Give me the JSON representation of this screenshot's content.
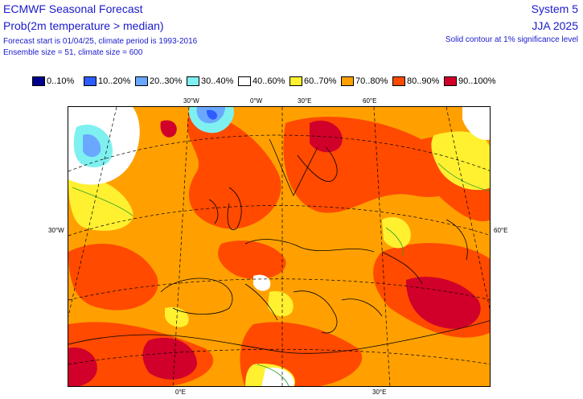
{
  "header": {
    "title": "ECMWF Seasonal Forecast",
    "subtitle": "Prob(2m temperature > median)",
    "line1": "Forecast start is 01/04/25, climate period is 1993-2016",
    "line2": "Ensemble size = 51, climate size = 600",
    "system": "System 5",
    "season": "JJA 2025",
    "contour_note": "Solid contour at 1% significance level"
  },
  "legend": [
    {
      "label": "0..10%",
      "color": "#00008c"
    },
    {
      "label": "10..20%",
      "color": "#2e5cff"
    },
    {
      "label": "20..30%",
      "color": "#6aa8ff"
    },
    {
      "label": "30..40%",
      "color": "#7ff0f0"
    },
    {
      "label": "40..60%",
      "color": "#ffffff"
    },
    {
      "label": "60..70%",
      "color": "#fff030"
    },
    {
      "label": "70..80%",
      "color": "#ffa000"
    },
    {
      "label": "80..90%",
      "color": "#ff4a00"
    },
    {
      "label": "90..100%",
      "color": "#d0002a"
    }
  ],
  "grid_labels": {
    "top": [
      "30°W",
      "0°W",
      "30°E",
      "60°E"
    ],
    "bottom": [
      "0°E",
      "30°E"
    ],
    "left": "30°W",
    "right": "60°E"
  }
}
